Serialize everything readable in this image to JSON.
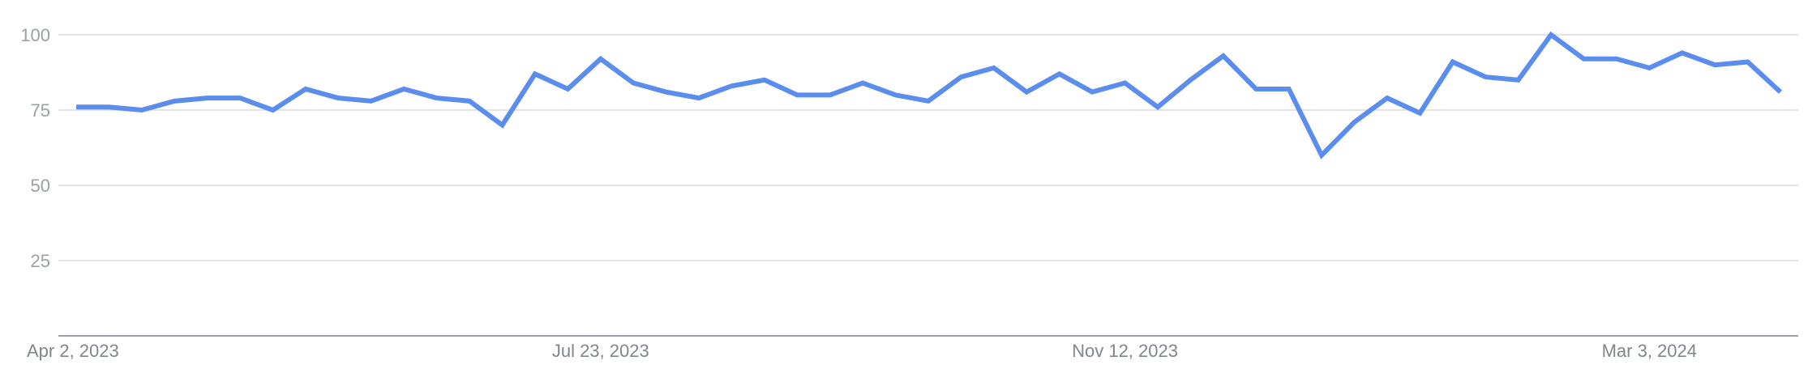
{
  "chart_data": {
    "type": "line",
    "title": "",
    "xlabel": "",
    "ylabel": "",
    "ylim": [
      0,
      100
    ],
    "y_ticks": [
      "25",
      "50",
      "75",
      "100"
    ],
    "x_tick_labels": [
      {
        "label": "Apr 2, 2023",
        "index": 0
      },
      {
        "label": "Jul 23, 2023",
        "index": 16
      },
      {
        "label": "Nov 12, 2023",
        "index": 32
      },
      {
        "label": "Mar 3, 2024",
        "index": 48
      }
    ],
    "grid": true,
    "legend": "none",
    "color": "#5b8def",
    "series": [
      {
        "values": [
          76,
          76,
          75,
          78,
          79,
          79,
          75,
          82,
          79,
          78,
          82,
          79,
          78,
          70,
          87,
          82,
          92,
          84,
          81,
          79,
          83,
          85,
          80,
          80,
          84,
          80,
          78,
          86,
          89,
          81,
          87,
          81,
          84,
          76,
          85,
          93,
          82,
          82,
          60,
          71,
          79,
          74,
          91,
          86,
          85,
          100,
          92,
          92,
          89,
          94,
          90,
          91,
          81
        ]
      }
    ]
  }
}
